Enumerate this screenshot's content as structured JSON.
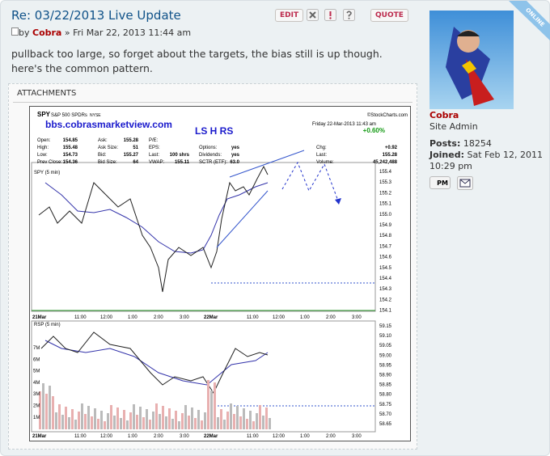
{
  "post": {
    "title": "Re: 03/22/2013 Live Update",
    "buttons": [
      "EDIT",
      "QUOTE"
    ],
    "byline": {
      "prefix": "by",
      "author": "Cobra",
      "date": "» Fri Mar 22, 2013 11:44 am"
    },
    "body": "pullback too large, so forget about the targets, the bias still is up though. here's the common pattern.",
    "attachments_label": "ATTACHMENTS"
  },
  "attachment_image": {
    "symbol": "SPY",
    "name": "S&P 500 SPDRs",
    "exchange": "NYSE",
    "credit": "©StockCharts.com",
    "watermark": "bbs.cobrasmarketview.com",
    "pattern": "LS H RS",
    "date": "Friday  22-Mar-2013  11:43 am",
    "change_pct": "+0.60%",
    "stat_columns": [
      [
        [
          "Open:",
          "154.85"
        ],
        [
          "High:",
          "155.48"
        ],
        [
          "Low:",
          "154.73"
        ],
        [
          "Prev Close:",
          "154.36"
        ]
      ],
      [
        [
          "Ask:",
          "155.28"
        ],
        [
          "Ask Size:",
          "51"
        ],
        [
          "Bid:",
          "155.27"
        ],
        [
          "Bid Size:",
          "64"
        ]
      ],
      [
        [
          "P/E:",
          ""
        ],
        [
          "EPS:",
          ""
        ],
        [
          "Last:",
          "100 shrs"
        ],
        [
          "VWAP:",
          "155.11"
        ]
      ],
      [
        [
          "",
          ""
        ],
        [
          "Options:",
          "yes"
        ],
        [
          "Dividends:",
          "yes"
        ],
        [
          "SCTR (ETF):",
          "63.0"
        ]
      ],
      [
        [
          "",
          ""
        ],
        [
          "Chg:",
          "+0.92"
        ],
        [
          "Last:",
          "155.28"
        ],
        [
          "Volume:",
          "45,242,488"
        ]
      ]
    ],
    "price_panel_label": "SPY (5 min)",
    "price_ticks": [
      "155.4",
      "155.3",
      "155.2",
      "155.1",
      "155.0",
      "154.9",
      "154.8",
      "154.7",
      "154.6",
      "154.5",
      "154.4",
      "154.3",
      "154.2",
      "154.1"
    ],
    "rsp_panel_label": "RSP (5 min)",
    "rsp_ticks": [
      "59.15",
      "59.10",
      "59.05",
      "59.00",
      "58.95",
      "58.90",
      "58.85",
      "58.80",
      "58.75",
      "58.70",
      "58.65"
    ],
    "volume_ticks": [
      "7M",
      "6M",
      "5M",
      "4M",
      "3M",
      "2M",
      "1M"
    ],
    "time_labels": [
      "21Mar",
      "11:00",
      "12:00",
      "1:00",
      "2:00",
      "3:00",
      "22Mar",
      "11:00",
      "12:00",
      "1:00",
      "2:00",
      "3:00"
    ]
  },
  "profile": {
    "badge": "ONLINE",
    "name": "Cobra",
    "rank": "Site Admin",
    "posts_label": "Posts:",
    "posts": "18254",
    "joined_label": "Joined:",
    "joined": "Sat Feb 12, 2011 10:29 pm",
    "pm": "PM"
  }
}
